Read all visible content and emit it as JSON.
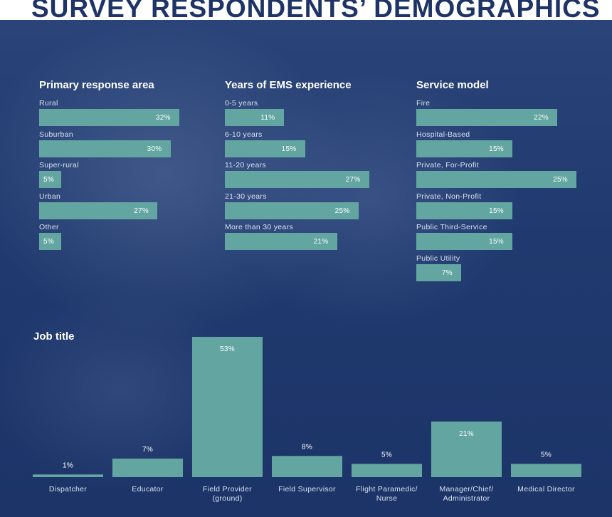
{
  "title": "SURVEY RESPONDENTS’ DEMOGRAPHICS",
  "chart_data": [
    {
      "type": "bar",
      "orientation": "horizontal",
      "title": "Primary response area",
      "unit": "%",
      "categories": [
        "Rural",
        "Suburban",
        "Super-rural",
        "Urban",
        "Other"
      ],
      "values": [
        32,
        30,
        5,
        27,
        5
      ],
      "value_labels": [
        "32%",
        "30%",
        "5%",
        "27%",
        "5%"
      ]
    },
    {
      "type": "bar",
      "orientation": "horizontal",
      "title": "Years of EMS experience",
      "unit": "%",
      "categories": [
        "0-5 years",
        "6-10 years",
        "11-20 years",
        "21-30 years",
        "More than 30 years"
      ],
      "values": [
        11,
        15,
        27,
        25,
        21
      ],
      "value_labels": [
        "11%",
        "15%",
        "27%",
        "25%",
        "21%"
      ]
    },
    {
      "type": "bar",
      "orientation": "horizontal",
      "title": "Service model",
      "unit": "%",
      "categories": [
        "Fire",
        "Hospital-Based",
        "Private, For-Profit",
        "Private, Non-Profit",
        "Public Third-Service",
        "Public Utility"
      ],
      "values": [
        22,
        15,
        25,
        15,
        15,
        7
      ],
      "value_labels": [
        "22%",
        "15%",
        "25%",
        "15%",
        "15%",
        "7%"
      ]
    },
    {
      "type": "bar",
      "orientation": "vertical",
      "title": "Job title",
      "unit": "%",
      "categories": [
        [
          "Dispatcher"
        ],
        [
          "Educator"
        ],
        [
          "Field Provider",
          "(ground)"
        ],
        [
          "Field Supervisor"
        ],
        [
          "Flight Paramedic/",
          "Nurse"
        ],
        [
          "Manager/Chief/",
          "Administrator"
        ],
        [
          "Medical Director"
        ]
      ],
      "values": [
        1,
        7,
        53,
        8,
        5,
        21,
        5
      ],
      "value_labels": [
        "1%",
        "7%",
        "53%",
        "8%",
        "5%",
        "21%",
        "5%"
      ]
    }
  ]
}
